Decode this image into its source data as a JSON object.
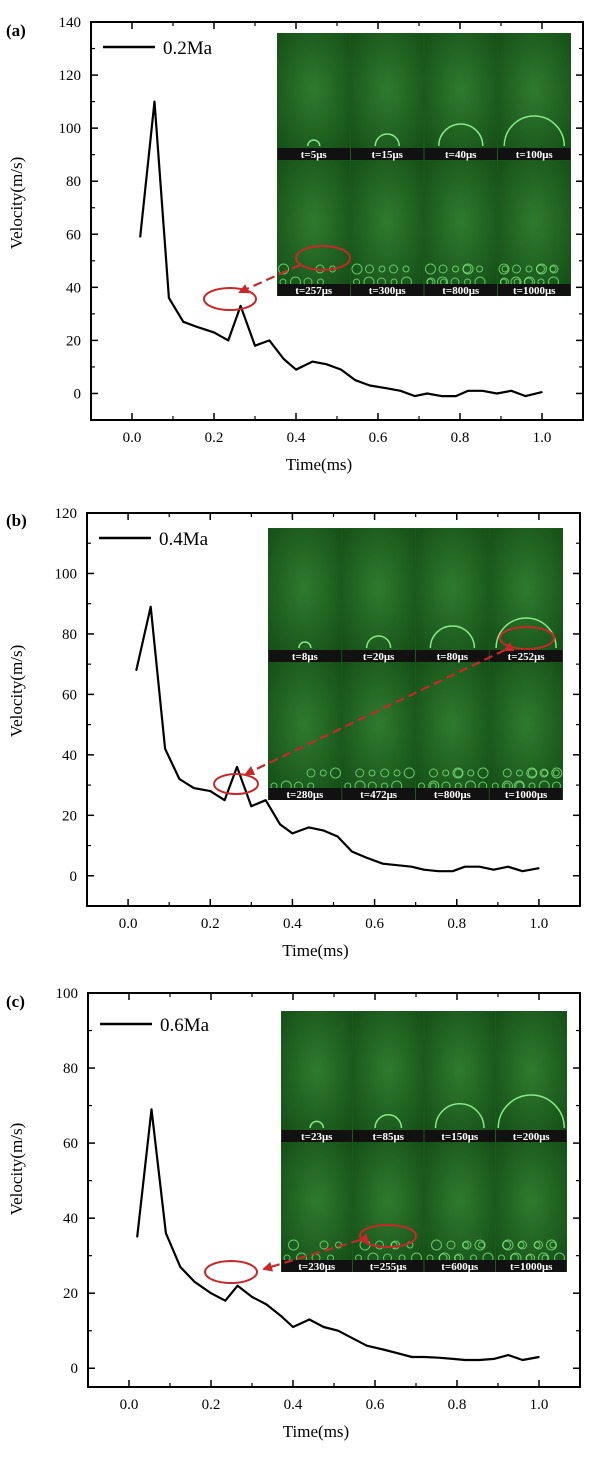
{
  "chart_data": [
    {
      "type": "line",
      "panel_label": "(a)",
      "xlabel": "Time(ms)",
      "ylabel": "Velocity(m/s)",
      "xlim": [
        -0.1,
        1.1
      ],
      "ylim": [
        -10,
        140
      ],
      "xticks": [
        "0.0",
        "0.2",
        "0.4",
        "0.6",
        "0.8",
        "1.0"
      ],
      "yticks": [
        "0",
        "20",
        "40",
        "60",
        "80",
        "100",
        "120",
        "140"
      ],
      "legend_position": "top-left",
      "series": [
        {
          "name": "0.2Ma",
          "color": "#000000",
          "x": [
            0.02,
            0.055,
            0.09,
            0.125,
            0.16,
            0.2,
            0.235,
            0.265,
            0.3,
            0.335,
            0.37,
            0.4,
            0.44,
            0.475,
            0.51,
            0.545,
            0.58,
            0.62,
            0.655,
            0.69,
            0.72,
            0.755,
            0.79,
            0.82,
            0.855,
            0.89,
            0.925,
            0.96,
            1.0
          ],
          "y": [
            59,
            110,
            36,
            27,
            25,
            23,
            20,
            33,
            18,
            20,
            13,
            9,
            12,
            11,
            9,
            5,
            3,
            2,
            1,
            -1,
            0,
            -1,
            -1,
            1,
            1,
            0,
            1,
            -1,
            0.5
          ]
        }
      ],
      "inset": {
        "timestamps": [
          "t=5μs",
          "t=15μs",
          "t=40μs",
          "t=100μs",
          "t=257μs",
          "t=300μs",
          "t=800μs",
          "t=1000μs"
        ]
      }
    },
    {
      "type": "line",
      "panel_label": "(b)",
      "xlabel": "Time(ms)",
      "ylabel": "Velocity(m/s)",
      "xlim": [
        -0.1,
        1.1
      ],
      "ylim": [
        -10,
        120
      ],
      "xticks": [
        "0.0",
        "0.2",
        "0.4",
        "0.6",
        "0.8",
        "1.0"
      ],
      "yticks": [
        "0",
        "20",
        "40",
        "60",
        "80",
        "100",
        "120"
      ],
      "legend_position": "top-left",
      "series": [
        {
          "name": "0.4Ma",
          "color": "#000000",
          "x": [
            0.02,
            0.055,
            0.09,
            0.125,
            0.16,
            0.2,
            0.235,
            0.265,
            0.3,
            0.335,
            0.37,
            0.4,
            0.44,
            0.475,
            0.51,
            0.545,
            0.58,
            0.62,
            0.655,
            0.69,
            0.72,
            0.755,
            0.79,
            0.82,
            0.855,
            0.89,
            0.925,
            0.96,
            1.0
          ],
          "y": [
            68,
            89,
            42,
            32,
            29,
            28,
            25,
            36,
            23,
            25,
            17,
            14,
            16,
            15,
            13,
            8,
            6,
            4,
            3.5,
            3,
            2,
            1.5,
            1.5,
            3,
            3,
            2,
            3,
            1.5,
            2.5
          ]
        }
      ],
      "inset": {
        "timestamps": [
          "t=8μs",
          "t=20μs",
          "t=80μs",
          "t=252μs",
          "t=280μs",
          "t=472μs",
          "t=800μs",
          "t=1000μs"
        ]
      }
    },
    {
      "type": "line",
      "panel_label": "(c)",
      "xlabel": "Time(ms)",
      "ylabel": "Velocity(m/s)",
      "xlim": [
        -0.1,
        1.1
      ],
      "ylim": [
        -5,
        100
      ],
      "xticks": [
        "0.0",
        "0.2",
        "0.4",
        "0.6",
        "0.8",
        "1.0"
      ],
      "yticks": [
        "0",
        "20",
        "40",
        "60",
        "80",
        "100"
      ],
      "legend_position": "top-left",
      "series": [
        {
          "name": "0.6Ma",
          "color": "#000000",
          "x": [
            0.02,
            0.055,
            0.09,
            0.125,
            0.16,
            0.2,
            0.235,
            0.265,
            0.3,
            0.335,
            0.37,
            0.4,
            0.44,
            0.475,
            0.51,
            0.545,
            0.58,
            0.62,
            0.655,
            0.69,
            0.72,
            0.755,
            0.79,
            0.82,
            0.855,
            0.89,
            0.925,
            0.96,
            1.0
          ],
          "y": [
            35,
            69,
            36,
            27,
            23,
            20,
            18,
            22,
            19,
            17,
            14,
            11,
            13,
            11,
            10,
            8,
            6,
            5,
            4,
            3,
            3,
            2.8,
            2.5,
            2.2,
            2.2,
            2.5,
            3.5,
            2.2,
            3
          ]
        }
      ],
      "inset": {
        "timestamps": [
          "t=23μs",
          "t=85μs",
          "t=150μs",
          "t=200μs",
          "t=230μs",
          "t=255μs",
          "t=600μs",
          "t=1000μs"
        ]
      }
    }
  ]
}
